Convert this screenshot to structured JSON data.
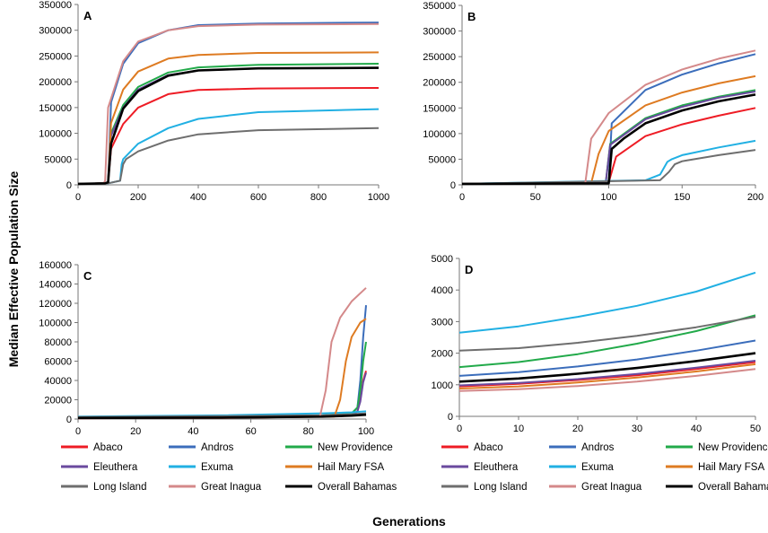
{
  "y_title": "Median Effective Population Size",
  "x_title": "Generations",
  "series_styles": [
    {
      "name": "Abaco",
      "color": "#ee1c25"
    },
    {
      "name": "Andros",
      "color": "#3b6dbb"
    },
    {
      "name": "New Providence",
      "color": "#22aa4a"
    },
    {
      "name": "Eleuthera",
      "color": "#6a4a9e"
    },
    {
      "name": "Exuma",
      "color": "#21b0e3"
    },
    {
      "name": "Hail Mary FSA",
      "color": "#de7b22"
    },
    {
      "name": "Long Island",
      "color": "#6e6e6e"
    },
    {
      "name": "Great Inagua",
      "color": "#d4898a"
    },
    {
      "name": "Overall Bahamas",
      "color": "#000000"
    }
  ],
  "chart_data": [
    {
      "panel": "A",
      "type": "line",
      "xlim": [
        0,
        1000
      ],
      "ylim": [
        0,
        350000
      ],
      "xticks": [
        0,
        200,
        400,
        600,
        800,
        1000
      ],
      "yticks": [
        0,
        50000,
        100000,
        150000,
        200000,
        250000,
        300000,
        350000
      ],
      "series": [
        {
          "name": "Abaco",
          "x": [
            0,
            90,
            100,
            110,
            150,
            200,
            300,
            400,
            600,
            1000
          ],
          "values": [
            2000,
            3000,
            5000,
            70000,
            118000,
            150000,
            176000,
            184000,
            187000,
            188000
          ]
        },
        {
          "name": "Andros",
          "x": [
            0,
            90,
            100,
            110,
            150,
            200,
            300,
            400,
            600,
            1000
          ],
          "values": [
            2000,
            3000,
            5000,
            160000,
            235000,
            275000,
            300000,
            310000,
            313000,
            315000
          ]
        },
        {
          "name": "New Providence",
          "x": [
            0,
            90,
            100,
            110,
            150,
            200,
            300,
            400,
            600,
            1000
          ],
          "values": [
            2000,
            3000,
            5000,
            100000,
            155000,
            190000,
            218000,
            228000,
            233000,
            235000
          ]
        },
        {
          "name": "Eleuthera",
          "x": [
            0,
            90,
            100,
            110,
            150,
            200,
            300,
            400,
            600,
            1000
          ],
          "values": [
            2000,
            3000,
            5000,
            95000,
            150000,
            185000,
            213000,
            222000,
            226000,
            227000
          ]
        },
        {
          "name": "Exuma",
          "x": [
            0,
            100,
            140,
            145,
            150,
            200,
            300,
            400,
            600,
            1000
          ],
          "values": [
            2000,
            3000,
            8000,
            40000,
            50000,
            80000,
            110000,
            128000,
            141000,
            147000
          ]
        },
        {
          "name": "Hail Mary FSA",
          "x": [
            0,
            90,
            100,
            110,
            150,
            200,
            300,
            400,
            600,
            1000
          ],
          "values": [
            2000,
            3000,
            5000,
            120000,
            185000,
            220000,
            245000,
            252000,
            256000,
            257000
          ]
        },
        {
          "name": "Long Island",
          "x": [
            0,
            100,
            140,
            150,
            160,
            200,
            300,
            400,
            600,
            1000
          ],
          "values": [
            2000,
            3000,
            8000,
            40000,
            50000,
            65000,
            86000,
            98000,
            106000,
            110000
          ]
        },
        {
          "name": "Great Inagua",
          "x": [
            0,
            85,
            90,
            100,
            150,
            200,
            300,
            400,
            600,
            1000
          ],
          "values": [
            2000,
            3000,
            8000,
            150000,
            240000,
            278000,
            300000,
            308000,
            311000,
            312000
          ]
        },
        {
          "name": "Overall Bahamas",
          "x": [
            0,
            90,
            100,
            110,
            150,
            200,
            300,
            400,
            600,
            1000
          ],
          "values": [
            2000,
            3000,
            5000,
            80000,
            148000,
            182000,
            212000,
            222000,
            226000,
            227000
          ]
        }
      ]
    },
    {
      "panel": "B",
      "type": "line",
      "xlim": [
        0,
        200
      ],
      "ylim": [
        0,
        350000
      ],
      "xticks": [
        0,
        50,
        100,
        150,
        200
      ],
      "yticks": [
        0,
        50000,
        100000,
        150000,
        200000,
        250000,
        300000,
        350000
      ],
      "series": [
        {
          "name": "Abaco",
          "x": [
            0,
            90,
            100,
            105,
            125,
            150,
            175,
            200
          ],
          "values": [
            2000,
            3000,
            5000,
            55000,
            95000,
            118000,
            135000,
            150000
          ]
        },
        {
          "name": "Andros",
          "x": [
            0,
            90,
            100,
            102,
            125,
            150,
            175,
            200
          ],
          "values": [
            2000,
            3000,
            5000,
            120000,
            185000,
            215000,
            237000,
            255000
          ]
        },
        {
          "name": "New Providence",
          "x": [
            0,
            90,
            98,
            101,
            125,
            150,
            175,
            200
          ],
          "values": [
            2000,
            3000,
            5000,
            80000,
            130000,
            155000,
            172000,
            185000
          ]
        },
        {
          "name": "Eleuthera",
          "x": [
            0,
            90,
            98,
            101,
            125,
            150,
            175,
            200
          ],
          "values": [
            2000,
            3000,
            5000,
            78000,
            128000,
            152000,
            170000,
            182000
          ]
        },
        {
          "name": "Exuma",
          "x": [
            0,
            125,
            135,
            140,
            143,
            150,
            175,
            200
          ],
          "values": [
            2000,
            9000,
            20000,
            45000,
            50000,
            58000,
            73000,
            86000
          ]
        },
        {
          "name": "Hail Mary FSA",
          "x": [
            0,
            88,
            93,
            100,
            125,
            150,
            175,
            200
          ],
          "values": [
            2000,
            3000,
            60000,
            105000,
            155000,
            180000,
            198000,
            212000
          ]
        },
        {
          "name": "Long Island",
          "x": [
            0,
            135,
            141,
            145,
            150,
            175,
            200
          ],
          "values": [
            2000,
            9000,
            25000,
            40000,
            46000,
            58000,
            68000
          ]
        },
        {
          "name": "Great Inagua",
          "x": [
            0,
            84,
            88,
            100,
            125,
            150,
            175,
            200
          ],
          "values": [
            2000,
            3000,
            90000,
            140000,
            195000,
            225000,
            246000,
            262000
          ]
        },
        {
          "name": "Overall Bahamas",
          "x": [
            0,
            100,
            102,
            110,
            125,
            150,
            175,
            200
          ],
          "values": [
            2000,
            3000,
            70000,
            90000,
            120000,
            145000,
            163000,
            176000
          ]
        }
      ]
    },
    {
      "panel": "C",
      "type": "line",
      "xlim": [
        0,
        100
      ],
      "ylim": [
        0,
        160000
      ],
      "xticks": [
        0,
        20,
        40,
        60,
        80,
        100
      ],
      "yticks": [
        0,
        20000,
        40000,
        60000,
        80000,
        100000,
        120000,
        140000,
        160000
      ],
      "series": [
        {
          "name": "Abaco",
          "x": [
            0,
            50,
            85,
            95,
            97,
            98,
            99,
            100
          ],
          "values": [
            800,
            1200,
            2500,
            3500,
            8000,
            20000,
            40000,
            50000
          ]
        },
        {
          "name": "Andros",
          "x": [
            0,
            50,
            85,
            95,
            97,
            98,
            99,
            100
          ],
          "values": [
            1100,
            1800,
            3500,
            5000,
            12000,
            40000,
            85000,
            118000
          ]
        },
        {
          "name": "New Providence",
          "x": [
            0,
            50,
            85,
            95,
            97,
            98,
            99,
            100
          ],
          "values": [
            1500,
            2200,
            4000,
            6000,
            12000,
            30000,
            60000,
            80000
          ]
        },
        {
          "name": "Eleuthera",
          "x": [
            0,
            50,
            85,
            95,
            97,
            98,
            99,
            100
          ],
          "values": [
            1000,
            1300,
            2800,
            3800,
            8000,
            18000,
            38000,
            48000
          ]
        },
        {
          "name": "Exuma",
          "x": [
            0,
            50,
            85,
            95,
            100
          ],
          "values": [
            2600,
            3800,
            6000,
            7000,
            8000
          ]
        },
        {
          "name": "Hail Mary FSA",
          "x": [
            0,
            50,
            89,
            91,
            93,
            95,
            98,
            100
          ],
          "values": [
            900,
            1200,
            2500,
            20000,
            60000,
            85000,
            100000,
            104000
          ]
        },
        {
          "name": "Long Island",
          "x": [
            0,
            50,
            85,
            95,
            100
          ],
          "values": [
            2100,
            3000,
            4000,
            5000,
            6000
          ]
        },
        {
          "name": "Great Inagua",
          "x": [
            0,
            50,
            84,
            86,
            88,
            91,
            95,
            100
          ],
          "values": [
            800,
            1100,
            2500,
            30000,
            80000,
            105000,
            122000,
            136000
          ]
        },
        {
          "name": "Overall Bahamas",
          "x": [
            0,
            50,
            85,
            95,
            100
          ],
          "values": [
            1100,
            1500,
            2500,
            3500,
            4500
          ]
        }
      ]
    },
    {
      "panel": "D",
      "type": "line",
      "xlim": [
        0,
        50
      ],
      "ylim": [
        0,
        5000
      ],
      "xticks": [
        0,
        10,
        20,
        30,
        40,
        50
      ],
      "yticks": [
        0,
        1000,
        2000,
        3000,
        4000,
        5000
      ],
      "series": [
        {
          "name": "Abaco",
          "x": [
            0,
            10,
            20,
            30,
            40,
            50
          ],
          "values": [
            950,
            1030,
            1150,
            1300,
            1500,
            1720
          ]
        },
        {
          "name": "Andros",
          "x": [
            0,
            10,
            20,
            30,
            40,
            50
          ],
          "values": [
            1280,
            1400,
            1580,
            1800,
            2080,
            2400
          ]
        },
        {
          "name": "New Providence",
          "x": [
            0,
            10,
            20,
            30,
            40,
            50
          ],
          "values": [
            1560,
            1720,
            1970,
            2300,
            2700,
            3200
          ]
        },
        {
          "name": "Eleuthera",
          "x": [
            0,
            10,
            20,
            30,
            40,
            50
          ],
          "values": [
            980,
            1060,
            1180,
            1340,
            1540,
            1760
          ]
        },
        {
          "name": "Exuma",
          "x": [
            0,
            10,
            20,
            30,
            40,
            50
          ],
          "values": [
            2650,
            2850,
            3150,
            3500,
            3950,
            4550
          ]
        },
        {
          "name": "Hail Mary FSA",
          "x": [
            0,
            10,
            20,
            30,
            40,
            50
          ],
          "values": [
            880,
            950,
            1070,
            1230,
            1420,
            1650
          ]
        },
        {
          "name": "Long Island",
          "x": [
            0,
            10,
            20,
            30,
            40,
            50
          ],
          "values": [
            2080,
            2160,
            2330,
            2550,
            2820,
            3150
          ]
        },
        {
          "name": "Great Inagua",
          "x": [
            0,
            10,
            20,
            30,
            40,
            50
          ],
          "values": [
            800,
            860,
            960,
            1100,
            1280,
            1500
          ]
        },
        {
          "name": "Overall Bahamas",
          "x": [
            0,
            10,
            20,
            30,
            40,
            50
          ],
          "values": [
            1100,
            1200,
            1350,
            1530,
            1750,
            2000
          ]
        }
      ]
    }
  ]
}
